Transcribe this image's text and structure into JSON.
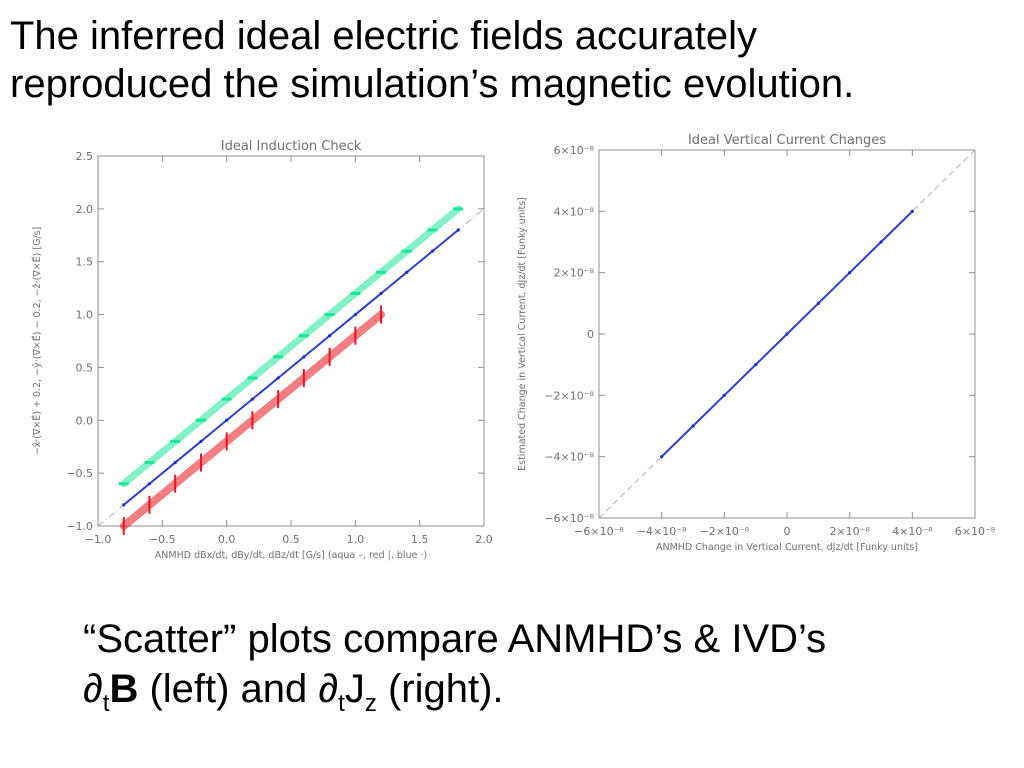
{
  "slide": {
    "title_line1": "The inferred ideal electric fields accurately",
    "title_line2": "reproduced the simulation’s magnetic evolution.",
    "caption_line1": "“Scatter” plots compare ANMHD’s & IVD’s",
    "caption_part_dt1": "∂",
    "caption_sub_t1": "t",
    "caption_B": "B",
    "caption_mid": " (left) and ",
    "caption_part_dt2": "∂",
    "caption_sub_t2": "t",
    "caption_J": "J",
    "caption_sub_z": "z",
    "caption_end": " (right)."
  },
  "chart_data": [
    {
      "type": "scatter",
      "title": "Ideal Induction Check",
      "xlabel": "ANMHD dBx/dt, dBy/dt, dBz/dt [G/s] (aqua –, red |, blue ·)",
      "ylabel": "−x̂·(∇×E⃗) + 0.2, −ŷ·(∇×E⃗) − 0.2, −ẑ·(∇×E⃗) [G/s]",
      "xlim": [
        -1.0,
        2.0
      ],
      "ylim": [
        -1.0,
        2.5
      ],
      "xticks": [
        "−1.0",
        "−0.5",
        "0.0",
        "0.5",
        "1.0",
        "1.5",
        "2.0"
      ],
      "yticks": [
        "−1.0",
        "−0.5",
        "0.0",
        "0.5",
        "1.0",
        "1.5",
        "2.0",
        "2.5"
      ],
      "grid": false,
      "reference_line": {
        "x": [
          -1.0,
          2.0
        ],
        "y": [
          -1.0,
          2.0
        ],
        "style": "dash-dot"
      },
      "series": [
        {
          "name": "aqua",
          "color": "#19e69a",
          "marker": "dash",
          "x": [
            -0.8,
            -0.6,
            -0.4,
            -0.2,
            0.0,
            0.2,
            0.4,
            0.6,
            0.8,
            1.0,
            1.2,
            1.4,
            1.6,
            1.8
          ],
          "y": [
            -0.6,
            -0.4,
            -0.2,
            0.0,
            0.2,
            0.4,
            0.6,
            0.8,
            1.0,
            1.2,
            1.4,
            1.6,
            1.8,
            2.0
          ]
        },
        {
          "name": "red",
          "color": "#e8141e",
          "marker": "bar",
          "x": [
            -0.8,
            -0.6,
            -0.4,
            -0.2,
            0.0,
            0.2,
            0.4,
            0.6,
            0.8,
            1.0,
            1.2
          ],
          "y": [
            -1.0,
            -0.8,
            -0.6,
            -0.4,
            -0.2,
            0.0,
            0.2,
            0.4,
            0.6,
            0.8,
            1.0
          ]
        },
        {
          "name": "blue",
          "color": "#1a2ed0",
          "marker": "dot",
          "x": [
            -0.8,
            -0.6,
            -0.4,
            -0.2,
            0.0,
            0.2,
            0.4,
            0.6,
            0.8,
            1.0,
            1.2,
            1.4,
            1.6,
            1.8
          ],
          "y": [
            -0.8,
            -0.6,
            -0.4,
            -0.2,
            0.0,
            0.2,
            0.4,
            0.6,
            0.8,
            1.0,
            1.2,
            1.4,
            1.6,
            1.8
          ]
        }
      ]
    },
    {
      "type": "scatter",
      "title": "Ideal Vertical Current Changes",
      "xlabel": "ANMHD Change in Vertical Current, dJz/dt [Funky units]",
      "ylabel": "Estimated Change in Vertical Current, dJz/dt [Funky units]",
      "xlim": [
        -6e-08,
        6e-08
      ],
      "ylim": [
        -6e-08,
        6e-08
      ],
      "xticks": [
        "−6×10⁻⁸",
        "−4×10⁻⁸",
        "−2×10⁻⁸",
        "0",
        "2×10⁻⁸",
        "4×10⁻⁸",
        "6×10⁻⁸"
      ],
      "yticks": [
        "−6×10⁻⁸",
        "−4×10⁻⁸",
        "−2×10⁻⁸",
        "0",
        "2×10⁻⁸",
        "4×10⁻⁸",
        "6×10⁻⁸"
      ],
      "grid": false,
      "reference_line": {
        "x": [
          -6e-08,
          6e-08
        ],
        "y": [
          -6e-08,
          6e-08
        ],
        "style": "dash"
      },
      "series": [
        {
          "name": "dJz/dt",
          "color": "#1a2ed0",
          "marker": "dot",
          "x": [
            -4e-08,
            -3e-08,
            -2e-08,
            -1e-08,
            0,
            1e-08,
            2e-08,
            3e-08,
            4e-08
          ],
          "y": [
            -4e-08,
            -3e-08,
            -2e-08,
            -1e-08,
            0,
            1e-08,
            2e-08,
            3e-08,
            4e-08
          ]
        }
      ]
    }
  ]
}
